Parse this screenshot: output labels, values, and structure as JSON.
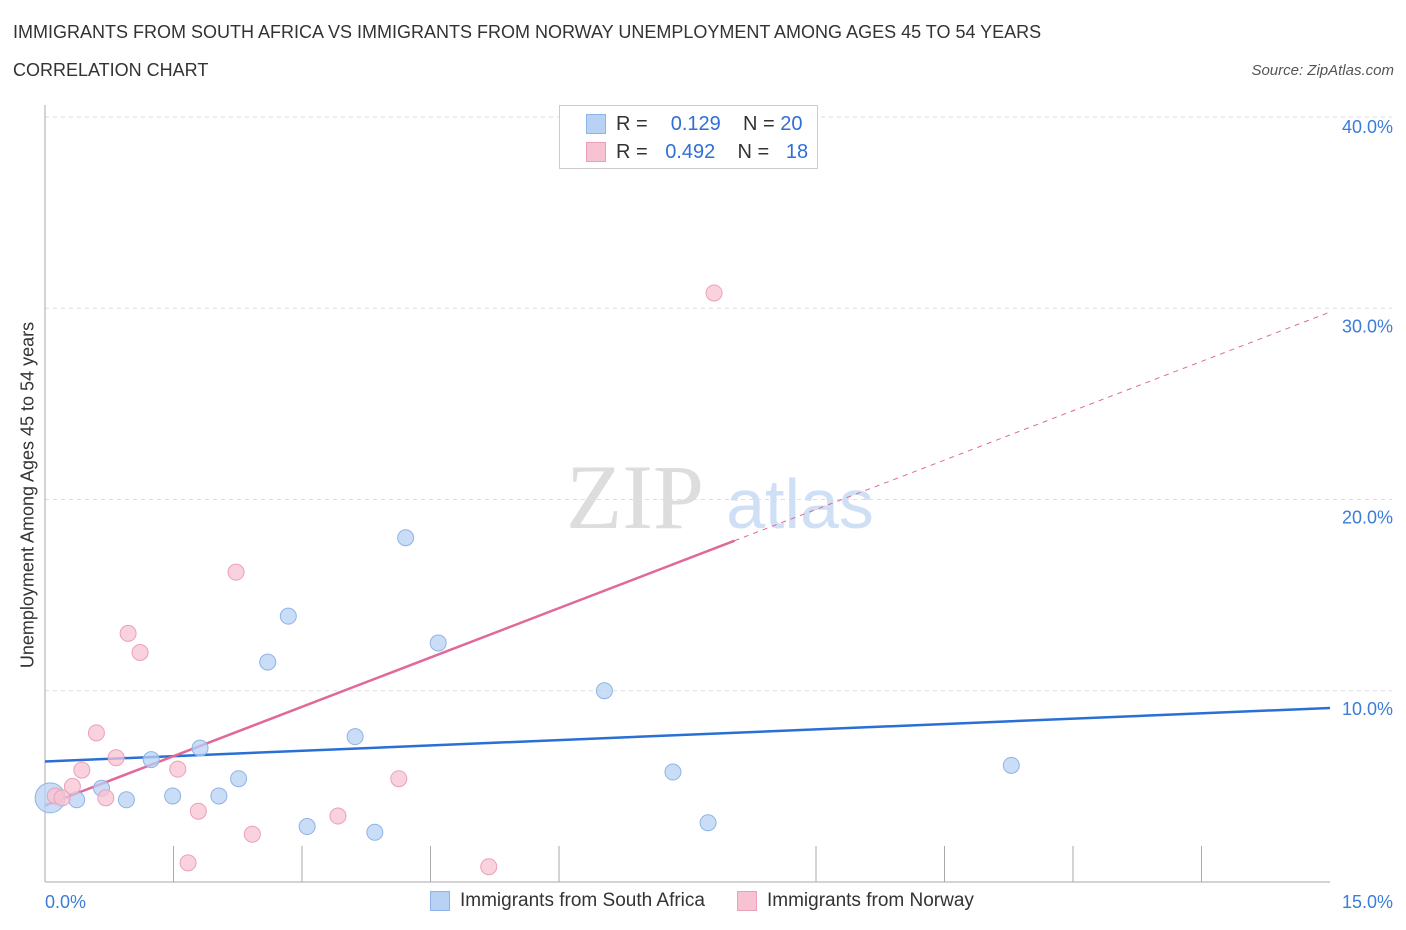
{
  "header": {
    "title": "IMMIGRANTS FROM SOUTH AFRICA VS IMMIGRANTS FROM NORWAY UNEMPLOYMENT AMONG AGES 45 TO 54 YEARS",
    "subtitle": "CORRELATION CHART",
    "source": "Source: ZipAtlas.com"
  },
  "legend": {
    "r_label": "R =",
    "n_label": "N =",
    "rows": [
      {
        "r": "0.129",
        "n": "20"
      },
      {
        "r": "0.492",
        "n": "18"
      }
    ]
  },
  "watermark": {
    "zip": "ZIP",
    "atlas": "atlas"
  },
  "colors": {
    "blue_fill": "#b7d2f4",
    "blue_line": "#2a6fd6",
    "pink_fill": "#f7c3d3",
    "pink_line": "#e0699a",
    "axis_text": "#3b7dd8"
  },
  "chart_data": {
    "type": "scatter",
    "title": "IMMIGRANTS FROM SOUTH AFRICA VS IMMIGRANTS FROM NORWAY UNEMPLOYMENT AMONG AGES 45 TO 54 YEARS",
    "xlabel": "",
    "ylabel": "Unemployment Among Ages 45 to 54 years",
    "xlim": [
      0,
      15
    ],
    "ylim": [
      0,
      40
    ],
    "x_tick_labels": [
      "0.0%",
      "15.0%"
    ],
    "y_tick_labels": [
      "10.0%",
      "20.0%",
      "30.0%",
      "40.0%"
    ],
    "y_ticks": [
      10,
      20,
      30,
      40
    ],
    "grid": true,
    "series": [
      {
        "name": "Immigrants from South Africa",
        "color": "blue",
        "points": [
          [
            0.06,
            4.4
          ],
          [
            0.37,
            4.3
          ],
          [
            0.66,
            4.9
          ],
          [
            0.95,
            4.3
          ],
          [
            1.24,
            6.4
          ],
          [
            1.49,
            4.5
          ],
          [
            1.81,
            7.0
          ],
          [
            2.03,
            4.5
          ],
          [
            2.26,
            5.4
          ],
          [
            2.6,
            11.5
          ],
          [
            2.84,
            13.9
          ],
          [
            3.06,
            2.9
          ],
          [
            3.62,
            7.6
          ],
          [
            3.85,
            2.6
          ],
          [
            4.21,
            18.0
          ],
          [
            4.59,
            12.5
          ],
          [
            6.53,
            10.0
          ],
          [
            7.33,
            5.75
          ],
          [
            7.74,
            3.1
          ],
          [
            11.28,
            6.1
          ]
        ],
        "trend": {
          "x": [
            0,
            15
          ],
          "y": [
            6.3,
            9.1
          ]
        }
      },
      {
        "name": "Immigrants from Norway",
        "color": "pink",
        "points": [
          [
            0.12,
            4.5
          ],
          [
            0.2,
            4.4
          ],
          [
            0.32,
            5.0
          ],
          [
            0.43,
            5.85
          ],
          [
            0.6,
            7.8
          ],
          [
            0.71,
            4.4
          ],
          [
            0.83,
            6.5
          ],
          [
            0.97,
            13.0
          ],
          [
            1.11,
            12.0
          ],
          [
            1.55,
            5.9
          ],
          [
            1.67,
            1.0
          ],
          [
            1.79,
            3.7
          ],
          [
            2.23,
            16.2
          ],
          [
            2.42,
            2.5
          ],
          [
            3.42,
            3.45
          ],
          [
            4.13,
            5.4
          ],
          [
            5.18,
            0.8
          ],
          [
            7.81,
            30.8
          ]
        ],
        "trend": {
          "x": [
            0,
            15
          ],
          "y": [
            4.0,
            29.8
          ],
          "solid_until": 8.05
        }
      }
    ]
  }
}
